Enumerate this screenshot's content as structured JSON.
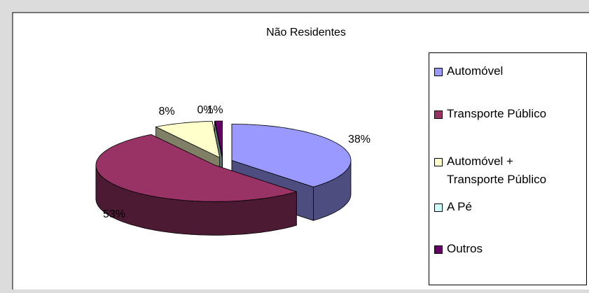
{
  "chart_data": {
    "type": "pie",
    "title": "Não Residentes",
    "categories": [
      "Automóvel",
      "Transporte Público",
      "Automóvel + Transporte Público",
      "A Pé",
      "Outros"
    ],
    "values": [
      38,
      53,
      8,
      0,
      1
    ],
    "value_labels": [
      "38%",
      "53%",
      "8%",
      "0%",
      "1%"
    ],
    "colors": [
      "#9999ff",
      "#993366",
      "#ffffcc",
      "#ccffff",
      "#660066"
    ],
    "legend": "right"
  }
}
